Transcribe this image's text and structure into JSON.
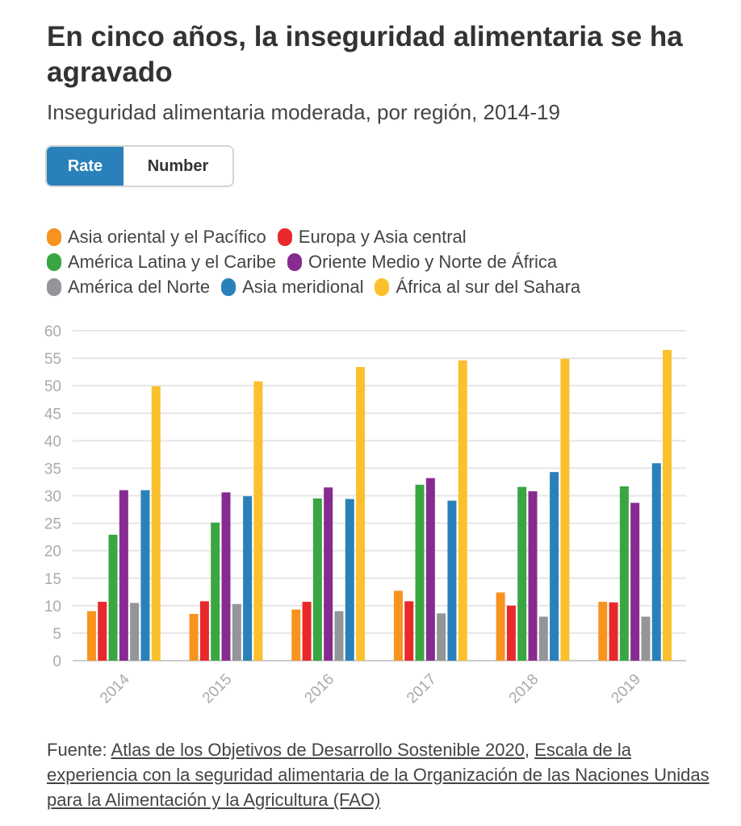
{
  "header": {
    "title": "En cinco años, la inseguridad alimentaria se ha agravado",
    "subtitle": "Inseguridad alimentaria moderada, por región, 2014-19"
  },
  "toggle": {
    "rate_label": "Rate",
    "number_label": "Number",
    "selected": "Rate"
  },
  "source": {
    "prefix": "Fuente: ",
    "link1": "Atlas de los Objetivos de Desarrollo Sostenible 2020",
    "separator": ", ",
    "link2": "Escala de la experiencia con la seguridad alimentaria de la Organización de las Naciones Unidas para la Alimentación y la Agricultura (FAO)"
  },
  "chart_data": {
    "type": "bar",
    "categories": [
      "2014",
      "2015",
      "2016",
      "2017",
      "2018",
      "2019"
    ],
    "ylim": [
      0,
      60
    ],
    "yticks": [
      0,
      5,
      10,
      15,
      20,
      25,
      30,
      35,
      40,
      45,
      50,
      55,
      60
    ],
    "grid": true,
    "legend_position": "top",
    "series": [
      {
        "name": "Asia oriental y el Pacífico",
        "color": "#f7931e",
        "values": [
          9.0,
          8.5,
          9.3,
          12.7,
          12.4,
          10.7
        ]
      },
      {
        "name": "Europa y Asia central",
        "color": "#e8282b",
        "values": [
          10.7,
          10.8,
          10.7,
          10.8,
          10.0,
          10.6
        ]
      },
      {
        "name": "América Latina y el Caribe",
        "color": "#3aa642",
        "values": [
          22.9,
          25.1,
          29.5,
          32.0,
          31.6,
          31.7
        ]
      },
      {
        "name": "Oriente Medio y Norte de África",
        "color": "#872b90",
        "values": [
          31.0,
          30.6,
          31.5,
          33.2,
          30.8,
          28.7
        ]
      },
      {
        "name": "América del Norte",
        "color": "#939598",
        "values": [
          10.5,
          10.3,
          9.0,
          8.6,
          8.0,
          8.0
        ]
      },
      {
        "name": "Asia meridional",
        "color": "#2a81b9",
        "values": [
          31.0,
          29.9,
          29.4,
          29.1,
          34.3,
          35.9
        ]
      },
      {
        "name": "África al sur del Sahara",
        "color": "#fbc02d",
        "values": [
          49.9,
          50.8,
          53.4,
          54.6,
          54.9,
          56.5
        ]
      }
    ]
  }
}
